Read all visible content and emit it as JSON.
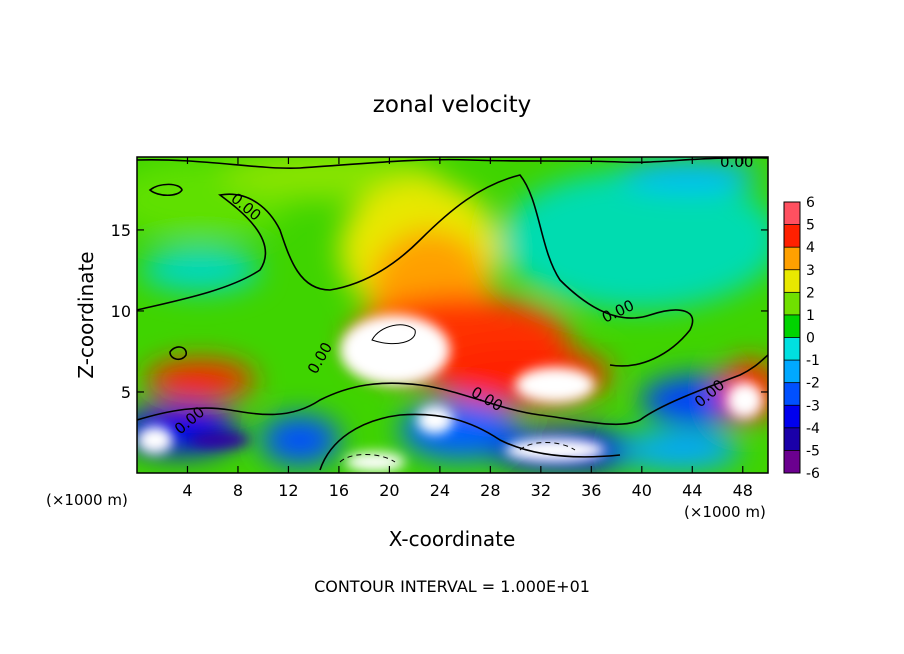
{
  "chart_data": {
    "type": "heatmap",
    "title": "zonal velocity",
    "xlabel": "X-coordinate",
    "ylabel": "Z-coordinate",
    "x_unit": "(×1000 m)",
    "x_unit_right": "(×1000 m)",
    "xlim": [
      0,
      50
    ],
    "ylim": [
      0,
      19.5
    ],
    "x_ticks": [
      4,
      8,
      12,
      16,
      20,
      24,
      28,
      32,
      36,
      40,
      44,
      48
    ],
    "y_ticks": [
      5,
      10,
      15
    ],
    "colorbar": {
      "levels": [
        -6,
        -5,
        -4,
        -3,
        -2,
        -1,
        0,
        1,
        2,
        3,
        4,
        5,
        6
      ],
      "colors": [
        "#6b008f",
        "#1a00a8",
        "#0000ee",
        "#0050ff",
        "#00a8ff",
        "#00e0e0",
        "#00d400",
        "#70e000",
        "#e8e800",
        "#ffa000",
        "#ff2000",
        "#ff5060",
        "#ffb0b0"
      ]
    },
    "contour_label": "0.00",
    "footer": "CONTOUR INTERVAL = 1.000E+01",
    "grid": false
  }
}
